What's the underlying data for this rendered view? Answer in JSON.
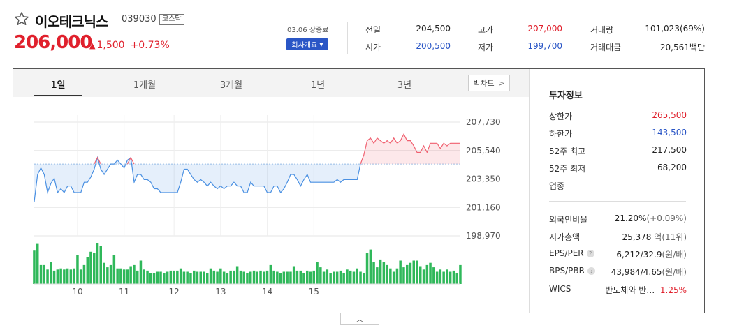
{
  "stock": {
    "name": "이오테크닉스",
    "code": "039030",
    "market": "코스닥",
    "price": "206,000",
    "change": "1,500",
    "change_pct": "+0.73%",
    "date": "03.06 장종료",
    "company_info_label": "회사개요"
  },
  "quote": {
    "prev_close_label": "전일",
    "prev_close": "204,500",
    "open_label": "시가",
    "open": "200,500",
    "high_label": "고가",
    "high": "207,000",
    "low_label": "저가",
    "low": "199,700",
    "volume_label": "거래량",
    "volume": "101,023(69%)",
    "amount_label": "거래대금",
    "amount": "20,561",
    "amount_unit": "백만"
  },
  "tabs": [
    "1일",
    "1개월",
    "3개월",
    "1년",
    "3년"
  ],
  "big_chart_label": "빅차트",
  "side": {
    "title": "투자정보",
    "upper_limit_label": "상한가",
    "upper_limit": "265,500",
    "lower_limit_label": "하한가",
    "lower_limit": "143,500",
    "high52_label": "52주 최고",
    "high52": "217,500",
    "low52_label": "52주 최저",
    "low52": "68,200",
    "sector_label": "업종",
    "foreign_label": "외국인비율",
    "foreign": "21.20%",
    "foreign_change": "(+0.09%)",
    "mktcap_label": "시가총액",
    "mktcap": "25,378",
    "mktcap_unit": "억(11위)",
    "eps_label": "EPS/PER",
    "eps": "6,212/32.9",
    "eps_unit": "(원/배)",
    "bps_label": "BPS/PBR",
    "bps": "43,984/4.65",
    "bps_unit": "(원/배)",
    "wics_label": "WICS",
    "wics": "반도체와 반…",
    "wics_pct": "1.25%"
  },
  "colors": {
    "up": "#e0202c",
    "down": "#2a56c6",
    "line_blue": "#4a90e2",
    "volume_green": "#2fb85a"
  },
  "chart_data": {
    "type": "line",
    "x_ticks": [
      "10",
      "11",
      "12",
      "13",
      "14",
      "15"
    ],
    "y_ticks": [
      "207,730",
      "205,540",
      "203,350",
      "201,160",
      "198,970"
    ],
    "ylim": [
      198970,
      207730
    ],
    "baseline": 204500,
    "series": [
      {
        "values": [
          201600,
          203700,
          204200,
          203700,
          202300,
          203000,
          203400,
          202300,
          202600,
          202300,
          202800,
          202800,
          202300,
          202300,
          202300,
          203100,
          203100,
          203500,
          204100,
          205000,
          204100,
          203700,
          204100,
          204500,
          204500,
          204800,
          204500,
          204200,
          204800,
          205000,
          203100,
          203700,
          203700,
          203300,
          203300,
          203100,
          202600,
          202600,
          202300,
          202300,
          202300,
          202300,
          202300,
          202300,
          203100,
          204100,
          204100,
          203700,
          203300,
          203100,
          203300,
          203100,
          202800,
          203100,
          202800,
          202600,
          202800,
          202600,
          202800,
          202800,
          203100,
          202800,
          202800,
          202300,
          202300,
          203100,
          202800,
          202800,
          202800,
          202800,
          202300,
          202300,
          202800,
          202800,
          202300,
          202600,
          203100,
          203700,
          203700,
          203300,
          202800,
          203300,
          203700,
          203100,
          203100,
          203100,
          203100,
          203100,
          203100,
          203100,
          203100,
          203300,
          203100,
          203300,
          203300,
          203300,
          203300,
          203300,
          204500,
          205200,
          206300,
          206500,
          206100,
          206500,
          206300,
          206100,
          206300,
          206100,
          206500,
          206100,
          206300,
          206800,
          206300,
          206300,
          205900,
          205400,
          205400,
          205900,
          205400,
          206100,
          206100,
          206100,
          205700,
          206100,
          205900,
          206100,
          206100,
          206100,
          206100
        ]
      }
    ],
    "volume": [
      30,
      36,
      17,
      17,
      13,
      20,
      12,
      13,
      14,
      13,
      14,
      13,
      14,
      26,
      13,
      17,
      24,
      29,
      28,
      37,
      34,
      19,
      15,
      17,
      26,
      14,
      14,
      13,
      13,
      16,
      17,
      12,
      21,
      13,
      12,
      10,
      10,
      11,
      11,
      10,
      11,
      12,
      12,
      12,
      14,
      11,
      11,
      10,
      12,
      11,
      11,
      11,
      10,
      14,
      12,
      11,
      14,
      11,
      10,
      12,
      12,
      16,
      12,
      11,
      10,
      11,
      12,
      11,
      12,
      11,
      12,
      17,
      12,
      11,
      10,
      11,
      11,
      11,
      16,
      12,
      12,
      10,
      12,
      11,
      12,
      20,
      15,
      11,
      13,
      10,
      11,
      11,
      12,
      10,
      13,
      12,
      11,
      14,
      11,
      10,
      28,
      31,
      20,
      15,
      22,
      20,
      17,
      14,
      11,
      14,
      21,
      15,
      17,
      19,
      21,
      21,
      16,
      13,
      17,
      19,
      15,
      11,
      13,
      11,
      13,
      11,
      12,
      10,
      17
    ]
  }
}
